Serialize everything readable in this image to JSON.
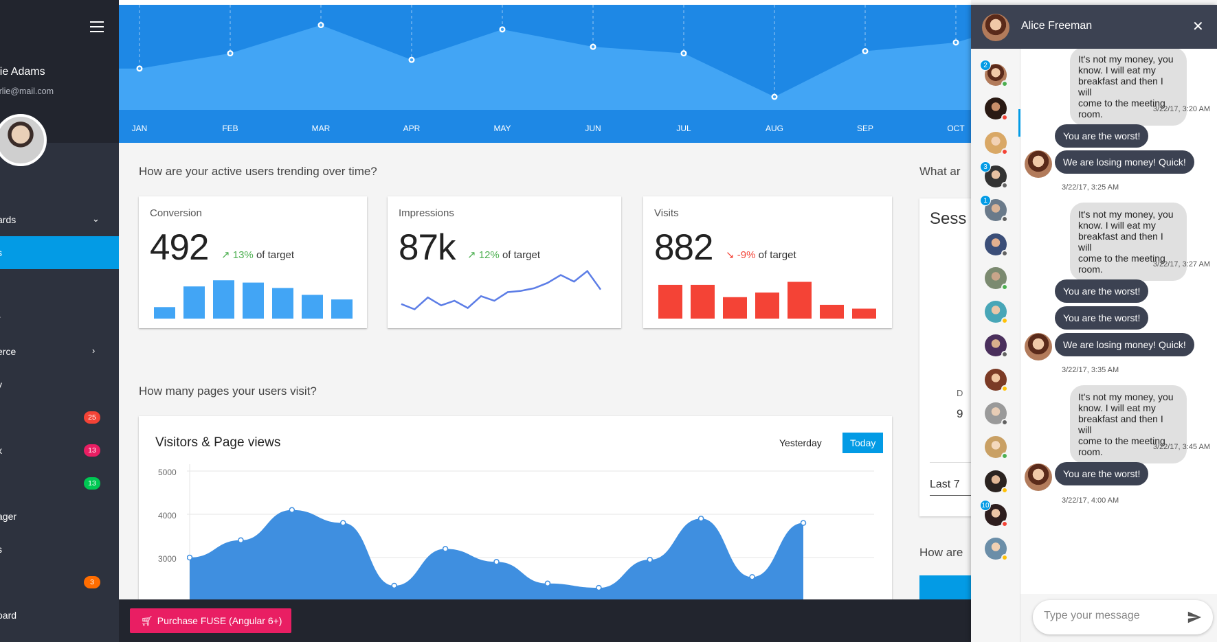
{
  "sidebar": {
    "user_name": "arlie Adams",
    "user_email": ".charlie@mail.com",
    "nav": [
      {
        "label": "ards",
        "chevron": "⌄",
        "active": false
      },
      {
        "label": "s",
        "chevron": "",
        "active": true
      },
      {
        "label": "",
        "chevron": "",
        "active": false
      },
      {
        "label": "r",
        "chevron": "",
        "active": false
      },
      {
        "label": "erce",
        "chevron": "›",
        "active": false
      },
      {
        "label": "y",
        "chevron": "",
        "active": false
      },
      {
        "label": "",
        "badge": "25",
        "badge_color": "#f44336"
      },
      {
        "label": "x",
        "badge": "13",
        "badge_color": "#e91e63"
      },
      {
        "label": "",
        "badge": "13",
        "badge_color": "#00c853"
      },
      {
        "label": "ager",
        "chevron": "",
        "active": false
      },
      {
        "label": "s",
        "chevron": "",
        "active": false
      },
      {
        "label": "",
        "badge": "3",
        "badge_color": "#ff6d00"
      },
      {
        "label": "oard",
        "chevron": "",
        "active": false
      }
    ]
  },
  "hero_chart": {
    "months": [
      "JAN",
      "FEB",
      "MAR",
      "APR",
      "MAY",
      "JUN",
      "JUL",
      "AUG",
      "SEP",
      "OCT"
    ],
    "values": [
      1.9,
      2.6,
      3.9,
      2.3,
      3.7,
      2.9,
      2.6,
      0.6,
      2.7,
      3.1
    ]
  },
  "section1_title": "How are your active users trending over time?",
  "section1_side_title": "What ar",
  "cards": {
    "conversion": {
      "title": "Conversion",
      "value": "492",
      "trend_pct": "13%",
      "trend_text": "of target",
      "trend_dir": "up",
      "bars": [
        15,
        42,
        50,
        47,
        40,
        31,
        25
      ],
      "color": "#42a5f5"
    },
    "impressions": {
      "title": "Impressions",
      "value": "87k",
      "trend_pct": "12%",
      "trend_text": "of target",
      "trend_dir": "up",
      "line": [
        20,
        12,
        30,
        18,
        25,
        14,
        32,
        25,
        38,
        40,
        44,
        52,
        64,
        54,
        70,
        42
      ],
      "color": "#5c7de6"
    },
    "visits": {
      "title": "Visits",
      "value": "882",
      "trend_pct": "-9%",
      "trend_text": "of target",
      "trend_dir": "down",
      "bars": [
        44,
        44,
        28,
        34,
        48,
        18,
        13
      ],
      "color": "#f44336"
    }
  },
  "section2_title": "How many pages your users visit?",
  "section2_side_title": "How are",
  "visitors_chart": {
    "title": "Visitors & Page views",
    "btn_yesterday": "Yesterday",
    "btn_today": "Today",
    "y_ticks": [
      "5000",
      "4000",
      "3000"
    ],
    "values": [
      3000,
      3400,
      4100,
      3800,
      2350,
      3200,
      2900,
      2400,
      2300,
      2950,
      3900,
      2550,
      3800
    ]
  },
  "side_card": {
    "title": "Sess",
    "footer": "Last 7",
    "mid1": "D",
    "mid2": "9"
  },
  "bottom_bar": {
    "purchase_label": "Purchase FUSE (Angular 6+)"
  },
  "chat": {
    "contact_name": "Alice Freeman",
    "placeholder": "Type your message",
    "contacts": [
      {
        "face": "face-a",
        "status": "#4caf50",
        "count": "2"
      },
      {
        "face": "face-b",
        "status": "#f44336",
        "count": ""
      },
      {
        "face": "face-c",
        "status": "#f44336",
        "count": ""
      },
      {
        "face": "face-d",
        "status": "#616161",
        "count": "3"
      },
      {
        "face": "face-e",
        "status": "#616161",
        "count": "1"
      },
      {
        "face": "face-f",
        "status": "#616161",
        "count": ""
      },
      {
        "face": "face-g",
        "status": "#4caf50",
        "count": ""
      },
      {
        "face": "face-h",
        "status": "#ffc107",
        "count": ""
      },
      {
        "face": "face-i",
        "status": "#616161",
        "count": ""
      },
      {
        "face": "face-j",
        "status": "#ffc107",
        "count": ""
      },
      {
        "face": "face-k",
        "status": "#616161",
        "count": ""
      },
      {
        "face": "face-l",
        "status": "#4caf50",
        "count": ""
      },
      {
        "face": "face-m",
        "status": "#ffc107",
        "count": ""
      },
      {
        "face": "face-n",
        "status": "#f44336",
        "count": "10"
      },
      {
        "face": "face-o",
        "status": "#ffc107",
        "count": ""
      }
    ],
    "messages": [
      {
        "type": "out",
        "text": "It's not my money, you\nknow. I will eat my\nbreakfast and then I will\ncome to the meeting room.",
        "ts": "3/22/17, 3:20 AM"
      },
      {
        "type": "in",
        "text": "You are the worst!"
      },
      {
        "type": "in",
        "text": "We are losing money! Quick!",
        "ts": "3/22/17, 3:25 AM",
        "avatar": true
      },
      {
        "type": "out",
        "text": "It's not my money, you\nknow. I will eat my\nbreakfast and then I will\ncome to the meeting room.",
        "ts": "3/22/17, 3:27 AM"
      },
      {
        "type": "in",
        "text": "You are the worst!"
      },
      {
        "type": "in",
        "text": "You are the worst!"
      },
      {
        "type": "in",
        "text": "We are losing money! Quick!",
        "ts": "3/22/17, 3:35 AM",
        "avatar": true
      },
      {
        "type": "out",
        "text": "It's not my money, you\nknow. I will eat my\nbreakfast and then I will\ncome to the meeting room.",
        "ts": "3/22/17, 3:45 AM"
      },
      {
        "type": "in",
        "text": "You are the worst!",
        "ts": "3/22/17, 4:00 AM",
        "avatar": true
      }
    ]
  },
  "colors": {
    "primary": "#039be5",
    "hero_bg": "#1e88e5",
    "hero_area": "#42a5f5",
    "sidebar": "#2d323e",
    "chat_header": "#3c4252",
    "accent_pink": "#e91e63"
  }
}
